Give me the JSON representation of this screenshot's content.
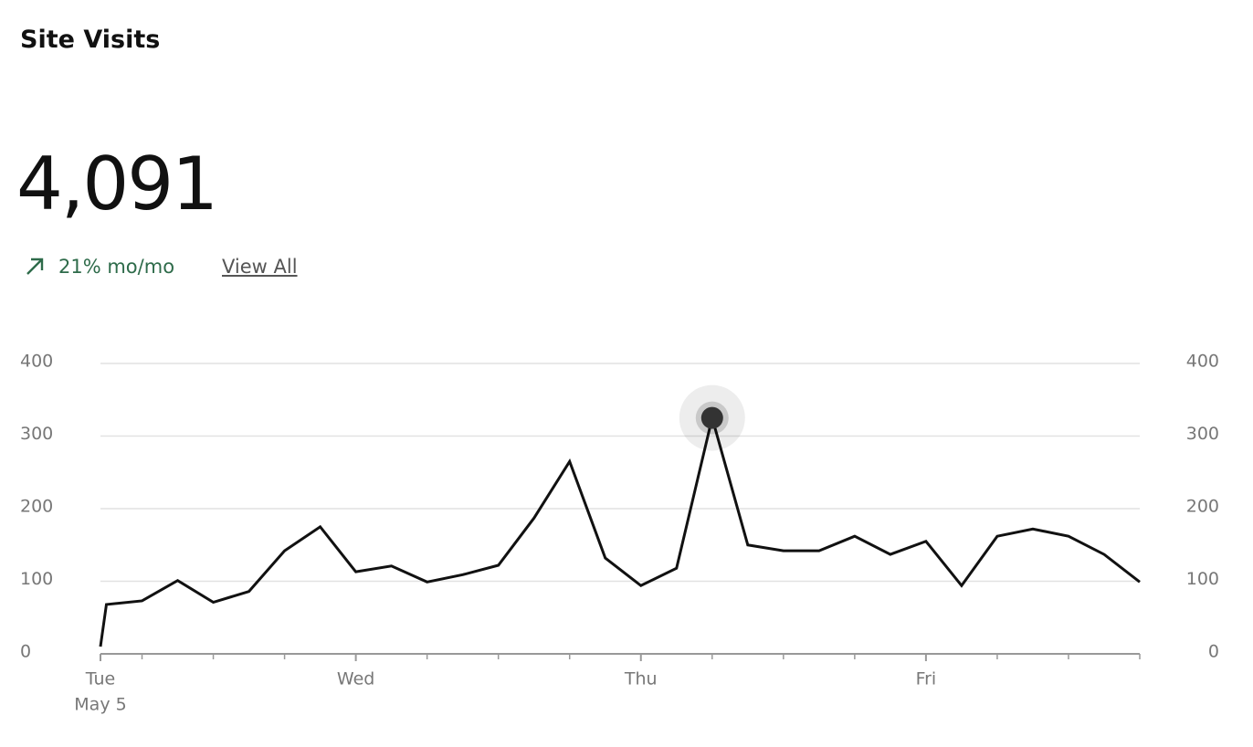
{
  "header": {
    "title": "Site Visits",
    "metric": "4,091",
    "change": "21% mo/mo",
    "link": "View All"
  },
  "chart_data": {
    "type": "line",
    "x": [
      2.5,
      3,
      6,
      9,
      12,
      15,
      18,
      21,
      24,
      27,
      30,
      33,
      36,
      39,
      42,
      45,
      48,
      51,
      54,
      57,
      60,
      63,
      66,
      69,
      72,
      75,
      78,
      81,
      84,
      87,
      90
    ],
    "values": [
      10,
      68,
      73,
      101,
      71,
      86,
      142,
      175,
      113,
      121,
      99,
      109,
      122,
      187,
      265,
      132,
      94,
      118,
      325,
      150,
      142,
      142,
      162,
      137,
      155,
      94,
      162,
      172,
      162,
      137,
      99
    ],
    "color": "#111111",
    "highlight_index": 18,
    "xlim": [
      2.5,
      90
    ],
    "xticks": [
      {
        "value": 2.5,
        "label": "Tue"
      },
      {
        "value": 24,
        "label": "Wed"
      },
      {
        "value": 48,
        "label": "Thu"
      },
      {
        "value": 72,
        "label": "Fri"
      }
    ],
    "xsublabel": "May 5",
    "xminorticks": [
      6,
      12,
      18,
      30,
      36,
      42,
      54,
      60,
      66,
      78,
      84,
      90
    ],
    "ylim": [
      0,
      400
    ],
    "yticks": [
      0,
      100,
      200,
      300,
      400
    ],
    "grid": true
  }
}
